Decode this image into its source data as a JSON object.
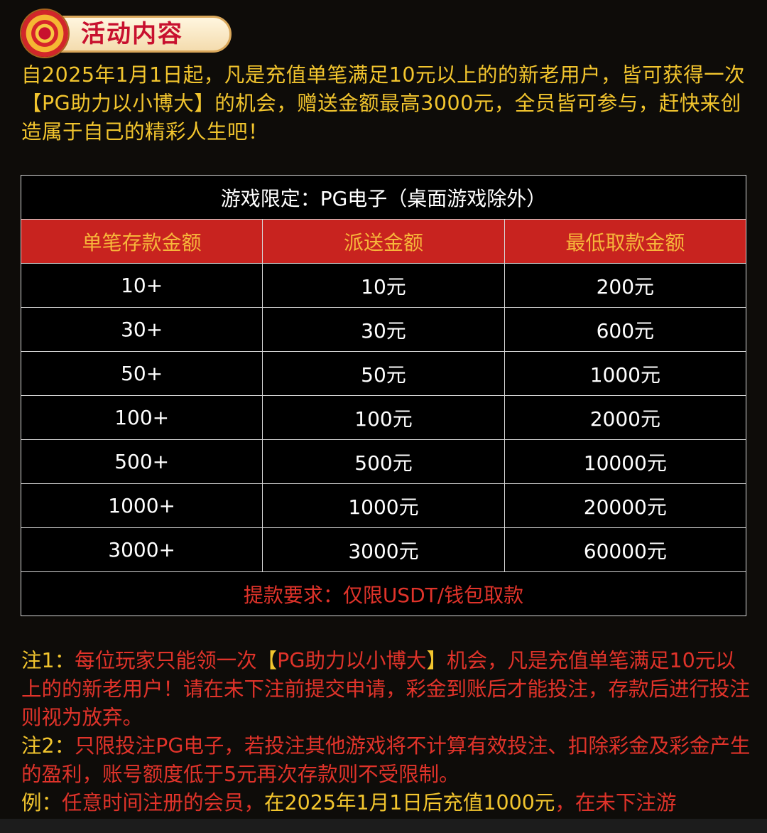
{
  "header": {
    "title": "活动内容",
    "icon": "sun-emblem-icon"
  },
  "intro": "自2025年1月1日起，凡是充值单笔满足10元以上的的新老用户，皆可获得一次【PG助力以小博大】的机会，赠送金额最高3000元，全员皆可参与，赶快来创造属于自己的精彩人生吧！",
  "table": {
    "caption": "游戏限定：PG电子（桌面游戏除外）",
    "headers": [
      "单笔存款金额",
      "派送金额",
      "最低取款金额"
    ],
    "rows": [
      [
        "10+",
        "10元",
        "200元"
      ],
      [
        "30+",
        "30元",
        "600元"
      ],
      [
        "50+",
        "50元",
        "1000元"
      ],
      [
        "100+",
        "100元",
        "2000元"
      ],
      [
        "500+",
        "500元",
        "10000元"
      ],
      [
        "1000+",
        "1000元",
        "20000元"
      ],
      [
        "3000+",
        "3000元",
        "60000元"
      ]
    ],
    "footer": "提款要求：仅限USDT/钱包取款"
  },
  "notes": {
    "n1_label": "注1：",
    "n1_a": "每位玩家只能领一次",
    "n1_bl": "【",
    "n1_b": "PG助力以小博大",
    "n1_br": "】",
    "n1_c": "机会，凡是充值单笔满足10元以上的的新老用户！请在未下注前提交申请，彩金到账后才能投注，存款后进行投注则视为放弃。",
    "n2_label": "注2：",
    "n2_text": "只限投注PG电子，若投注其他游戏将不计算有效投注、扣除彩金及彩金产生的盈利，账号额度低于5元再次存款则不受限制。",
    "ex_label": "例：",
    "ex_a": "任意时间注册的会员，",
    "ex_b": "在2025年1月1日后充值1000元",
    "ex_c": "，在未下注游"
  },
  "colors": {
    "yellow": "#f2c52e",
    "red": "#e0332a",
    "header_bg": "#c8231f",
    "header_text": "#f7b63a"
  }
}
